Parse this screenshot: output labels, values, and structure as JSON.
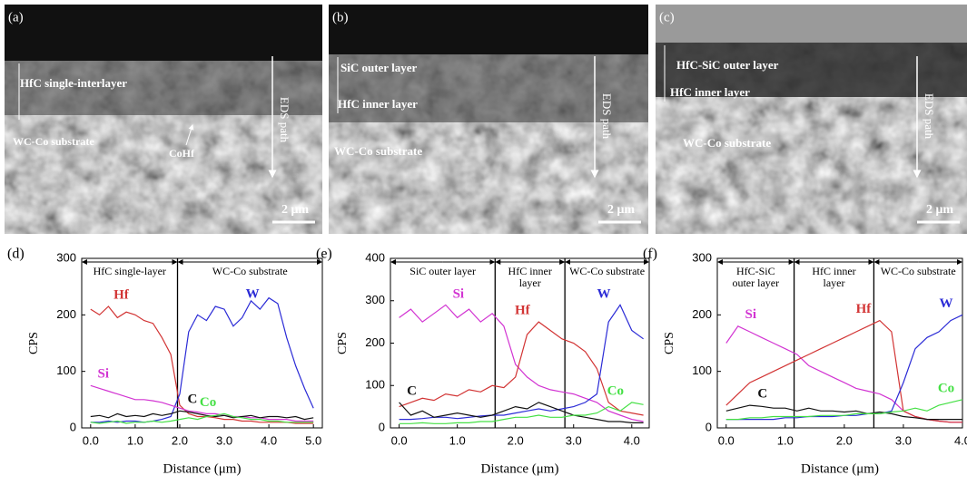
{
  "images": [
    {
      "panel": "(a)",
      "labels": [
        "HfC single-interlayer",
        "WC-Co substrate",
        "CoHf",
        "EDS path"
      ],
      "scale_bar": "2 μm"
    },
    {
      "panel": "(b)",
      "labels": [
        "SiC outer layer",
        "HfC inner layer",
        "WC-Co substrate",
        "EDS path"
      ],
      "scale_bar": "2 μm"
    },
    {
      "panel": "(c)",
      "labels": [
        "HfC-SiC outer layer",
        "HfC inner layer",
        "WC-Co substrate",
        "EDS path"
      ],
      "scale_bar": "2 μm"
    }
  ],
  "chart_data": [
    {
      "type": "line",
      "panel": "(d)",
      "y_label": "CPS",
      "x_label": "Distance (μm)",
      "x": [
        0,
        0.2,
        0.4,
        0.6,
        0.8,
        1.0,
        1.2,
        1.4,
        1.6,
        1.8,
        2.0,
        2.2,
        2.4,
        2.6,
        2.8,
        3.0,
        3.2,
        3.4,
        3.6,
        3.8,
        4.0,
        4.2,
        4.4,
        4.6,
        4.8,
        5.0
      ],
      "xlim": [
        -0.2,
        5.2
      ],
      "xticks": [
        {
          "value": 0,
          "label": "0.0"
        },
        {
          "value": 1,
          "label": "1.0"
        },
        {
          "value": 2,
          "label": "2.0"
        },
        {
          "value": 3,
          "label": "3.0"
        },
        {
          "value": 4,
          "label": "4.0"
        },
        {
          "value": 5,
          "label": "5.0"
        }
      ],
      "ylim": [
        0,
        300
      ],
      "yticks": [
        0,
        100,
        200,
        300
      ],
      "dividers": [
        1.95
      ],
      "regions": [
        [
          "HfC single-layer"
        ],
        [
          "WC-Co substrate"
        ]
      ],
      "series": [
        {
          "name": "Hf",
          "color": "#d23434",
          "values": [
            210,
            200,
            215,
            195,
            205,
            200,
            190,
            185,
            160,
            130,
            40,
            25,
            20,
            20,
            18,
            15,
            15,
            12,
            12,
            10,
            10,
            10,
            10,
            8,
            8,
            8
          ]
        },
        {
          "name": "W",
          "color": "#2b2bd6",
          "values": [
            10,
            10,
            12,
            10,
            12,
            12,
            10,
            12,
            15,
            20,
            60,
            170,
            200,
            190,
            215,
            210,
            180,
            195,
            225,
            210,
            230,
            220,
            160,
            110,
            70,
            35
          ]
        },
        {
          "name": "Si",
          "color": "#d234d2",
          "values": [
            75,
            70,
            65,
            60,
            55,
            50,
            50,
            48,
            45,
            40,
            35,
            30,
            28,
            25,
            25,
            22,
            20,
            20,
            18,
            18,
            15,
            15,
            15,
            12,
            12,
            12
          ]
        },
        {
          "name": "C",
          "color": "#111111",
          "values": [
            20,
            22,
            18,
            25,
            20,
            22,
            20,
            25,
            22,
            25,
            30,
            28,
            25,
            22,
            20,
            22,
            18,
            20,
            22,
            18,
            20,
            20,
            18,
            20,
            15,
            18
          ]
        },
        {
          "name": "Co",
          "color": "#44e044",
          "values": [
            10,
            8,
            10,
            12,
            8,
            10,
            10,
            12,
            10,
            12,
            15,
            18,
            15,
            20,
            22,
            25,
            20,
            18,
            15,
            15,
            12,
            12,
            10,
            10,
            10,
            10
          ]
        }
      ]
    },
    {
      "type": "line",
      "panel": "(e)",
      "y_label": "CPS",
      "x_label": "Distance (μm)",
      "x": [
        0,
        0.2,
        0.4,
        0.6,
        0.8,
        1.0,
        1.2,
        1.4,
        1.6,
        1.8,
        2.0,
        2.2,
        2.4,
        2.6,
        2.8,
        3.0,
        3.2,
        3.4,
        3.6,
        3.8,
        4.0,
        4.2
      ],
      "xlim": [
        -0.15,
        4.3
      ],
      "xticks": [
        {
          "value": 0,
          "label": "0.0"
        },
        {
          "value": 1,
          "label": "1.0"
        },
        {
          "value": 2,
          "label": "2.0"
        },
        {
          "value": 3,
          "label": "3.0"
        },
        {
          "value": 4,
          "label": "4.0"
        }
      ],
      "ylim": [
        0,
        400
      ],
      "yticks": [
        0,
        100,
        200,
        300,
        400
      ],
      "dividers": [
        1.65,
        2.85
      ],
      "regions": [
        [
          "SiC outer layer"
        ],
        [
          "HfC inner",
          "layer"
        ],
        [
          "WC-Co substrate"
        ]
      ],
      "series": [
        {
          "name": "Si",
          "color": "#d234d2",
          "values": [
            260,
            280,
            250,
            270,
            290,
            260,
            280,
            250,
            270,
            240,
            150,
            120,
            100,
            90,
            85,
            80,
            70,
            60,
            40,
            30,
            20,
            15
          ]
        },
        {
          "name": "Hf",
          "color": "#d23434",
          "values": [
            50,
            60,
            70,
            65,
            80,
            75,
            90,
            85,
            100,
            95,
            120,
            220,
            250,
            230,
            210,
            200,
            180,
            140,
            60,
            40,
            35,
            30
          ]
        },
        {
          "name": "W",
          "color": "#2b2bd6",
          "values": [
            20,
            20,
            22,
            25,
            25,
            22,
            25,
            28,
            30,
            30,
            35,
            40,
            45,
            40,
            45,
            50,
            60,
            80,
            250,
            290,
            230,
            210
          ]
        },
        {
          "name": "C",
          "color": "#111111",
          "values": [
            60,
            30,
            40,
            25,
            30,
            35,
            30,
            25,
            30,
            40,
            50,
            45,
            60,
            50,
            40,
            30,
            25,
            20,
            15,
            15,
            12,
            12
          ]
        },
        {
          "name": "Co",
          "color": "#44e044",
          "values": [
            10,
            10,
            12,
            10,
            10,
            12,
            12,
            15,
            15,
            20,
            25,
            25,
            30,
            25,
            25,
            30,
            30,
            35,
            50,
            40,
            60,
            55
          ]
        }
      ]
    },
    {
      "type": "line",
      "panel": "(f)",
      "y_label": "CPS",
      "x_label": "Distance (μm)",
      "x": [
        0,
        0.2,
        0.4,
        0.6,
        0.8,
        1.0,
        1.2,
        1.4,
        1.6,
        1.8,
        2.0,
        2.2,
        2.4,
        2.6,
        2.8,
        3.0,
        3.2,
        3.4,
        3.6,
        3.8,
        4.0
      ],
      "xlim": [
        -0.15,
        4.0
      ],
      "xticks": [
        {
          "value": 0,
          "label": "0.0"
        },
        {
          "value": 1,
          "label": "1.0"
        },
        {
          "value": 2,
          "label": "2.0"
        },
        {
          "value": 3,
          "label": "3.0"
        },
        {
          "value": 4,
          "label": "4.0"
        }
      ],
      "ylim": [
        0,
        300
      ],
      "yticks": [
        0,
        100,
        200,
        300
      ],
      "dividers": [
        1.15,
        2.5
      ],
      "regions": [
        [
          "HfC-SiC",
          "outer layer"
        ],
        [
          "HfC inner",
          "layer"
        ],
        [
          "WC-Co substrate"
        ]
      ],
      "series": [
        {
          "name": "Si",
          "color": "#d234d2",
          "values": [
            150,
            180,
            170,
            160,
            150,
            140,
            130,
            110,
            100,
            90,
            80,
            70,
            65,
            60,
            50,
            30,
            20,
            15,
            12,
            10,
            10
          ]
        },
        {
          "name": "Hf",
          "color": "#d23434",
          "values": [
            40,
            60,
            80,
            90,
            100,
            110,
            120,
            130,
            140,
            150,
            160,
            170,
            180,
            190,
            170,
            30,
            20,
            15,
            12,
            10,
            10
          ]
        },
        {
          "name": "W",
          "color": "#2b2bd6",
          "values": [
            15,
            15,
            15,
            15,
            15,
            18,
            18,
            20,
            20,
            20,
            22,
            22,
            25,
            25,
            30,
            80,
            140,
            160,
            170,
            190,
            200
          ]
        },
        {
          "name": "C",
          "color": "#111111",
          "values": [
            30,
            35,
            40,
            38,
            35,
            35,
            30,
            35,
            30,
            30,
            28,
            30,
            25,
            28,
            25,
            20,
            18,
            15,
            15,
            15,
            15
          ]
        },
        {
          "name": "Co",
          "color": "#44e044",
          "values": [
            15,
            15,
            18,
            18,
            20,
            20,
            20,
            20,
            22,
            22,
            22,
            25,
            25,
            25,
            28,
            30,
            35,
            30,
            40,
            45,
            50
          ]
        }
      ]
    }
  ]
}
